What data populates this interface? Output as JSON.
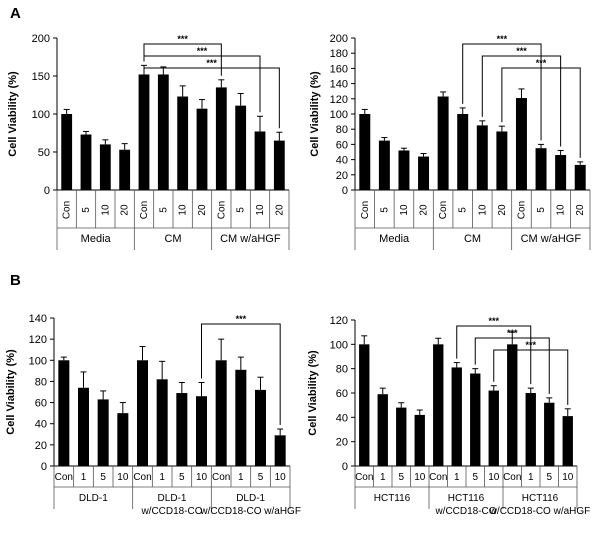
{
  "panels": [
    "A",
    "B"
  ],
  "chart_data": [
    {
      "type": "bar",
      "panel": "A",
      "ylabel": "Cell Viability (%)",
      "ylim": [
        0,
        200
      ],
      "yticks": [
        0,
        50,
        100,
        150,
        200
      ],
      "categories": [
        "Con",
        "5",
        "10",
        "20",
        "Con",
        "5",
        "10",
        "20",
        "Con",
        "5",
        "10",
        "20"
      ],
      "groups": [
        {
          "label": "Media",
          "span": 4
        },
        {
          "label": "CM",
          "span": 4
        },
        {
          "label": "CM w/aHGF",
          "span": 4
        }
      ],
      "values": [
        100,
        73,
        60,
        53,
        152,
        152,
        123,
        107,
        135,
        111,
        77,
        65
      ],
      "errors": [
        6,
        4,
        6,
        8,
        12,
        10,
        14,
        12,
        10,
        16,
        20,
        11
      ],
      "significance": [
        {
          "from": 4,
          "to": 8,
          "label": "***"
        },
        {
          "from": 4,
          "to": 10,
          "label": "***"
        },
        {
          "from": 4,
          "to": 11,
          "label": "***"
        }
      ]
    },
    {
      "type": "bar",
      "panel": "A",
      "ylabel": "Cell Viability (%)",
      "ylim": [
        0,
        200
      ],
      "yticks": [
        0,
        20,
        40,
        60,
        80,
        100,
        120,
        140,
        160,
        180,
        200
      ],
      "categories": [
        "Con",
        "5",
        "10",
        "20",
        "Con",
        "5",
        "10",
        "20",
        "Con",
        "5",
        "10",
        "20"
      ],
      "groups": [
        {
          "label": "Media",
          "span": 4
        },
        {
          "label": "CM",
          "span": 4
        },
        {
          "label": "CM w/aHGF",
          "span": 4
        }
      ],
      "values": [
        100,
        65,
        52,
        44,
        123,
        100,
        85,
        77,
        121,
        55,
        46,
        33
      ],
      "errors": [
        6,
        4,
        3,
        4,
        6,
        8,
        6,
        7,
        12,
        5,
        6,
        4
      ],
      "significance": [
        {
          "from": 5,
          "to": 9,
          "label": "***"
        },
        {
          "from": 6,
          "to": 10,
          "label": "***"
        },
        {
          "from": 7,
          "to": 11,
          "label": "***"
        }
      ]
    },
    {
      "type": "bar",
      "panel": "B",
      "ylabel": "Cell Viability (%)",
      "ylim": [
        0,
        140
      ],
      "yticks": [
        0,
        20,
        40,
        60,
        80,
        100,
        120,
        140
      ],
      "categories": [
        "Con",
        "1",
        "5",
        "10",
        "Con",
        "1",
        "5",
        "10",
        "Con",
        "1",
        "5",
        "10"
      ],
      "groups": [
        {
          "label": "DLD-1",
          "span": 4
        },
        {
          "label": "DLD-1 w/CCD18-CO",
          "span": 4
        },
        {
          "label": "DLD-1 w/CCD18-CO w/aHGF",
          "span": 4
        }
      ],
      "values": [
        100,
        74,
        63,
        50,
        100,
        82,
        69,
        66,
        100,
        91,
        72,
        29
      ],
      "errors": [
        3,
        15,
        8,
        10,
        13,
        17,
        10,
        13,
        20,
        12,
        12,
        6
      ],
      "significance": [
        {
          "from": 7,
          "to": 11,
          "label": "***"
        }
      ]
    },
    {
      "type": "bar",
      "panel": "B",
      "ylabel": "Cell Viability (%)",
      "ylim": [
        0,
        120
      ],
      "yticks": [
        0,
        20,
        40,
        60,
        80,
        100,
        120
      ],
      "categories": [
        "Con",
        "1",
        "5",
        "10",
        "Con",
        "1",
        "5",
        "10",
        "Con",
        "1",
        "5",
        "10"
      ],
      "groups": [
        {
          "label": "HCT116",
          "span": 4
        },
        {
          "label": "HCT116 w/CCD18-CO",
          "span": 4
        },
        {
          "label": "HCT116 w/CCD18-CO w/aHGF",
          "span": 4
        }
      ],
      "values": [
        100,
        59,
        48,
        42,
        100,
        81,
        76,
        62,
        100,
        60,
        52,
        41
      ],
      "errors": [
        7,
        5,
        4,
        4,
        5,
        4,
        4,
        4,
        10,
        4,
        4,
        6
      ],
      "significance": [
        {
          "from": 5,
          "to": 9,
          "label": "***"
        },
        {
          "from": 6,
          "to": 10,
          "label": "***"
        },
        {
          "from": 7,
          "to": 11,
          "label": "***"
        }
      ]
    }
  ]
}
